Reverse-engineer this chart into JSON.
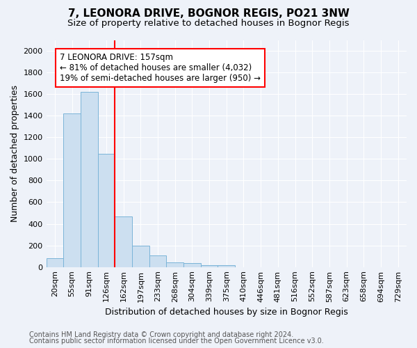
{
  "title": "7, LEONORA DRIVE, BOGNOR REGIS, PO21 3NW",
  "subtitle": "Size of property relative to detached houses in Bognor Regis",
  "xlabel": "Distribution of detached houses by size in Bognor Regis",
  "ylabel": "Number of detached properties",
  "categories": [
    "20sqm",
    "55sqm",
    "91sqm",
    "126sqm",
    "162sqm",
    "197sqm",
    "233sqm",
    "268sqm",
    "304sqm",
    "339sqm",
    "375sqm",
    "410sqm",
    "446sqm",
    "481sqm",
    "516sqm",
    "552sqm",
    "587sqm",
    "623sqm",
    "658sqm",
    "694sqm",
    "729sqm"
  ],
  "values": [
    80,
    1420,
    1620,
    1050,
    470,
    200,
    105,
    45,
    35,
    15,
    20,
    0,
    0,
    0,
    0,
    0,
    0,
    0,
    0,
    0,
    0
  ],
  "bar_color": "#ccdff0",
  "bar_edge_color": "#7ab4d8",
  "red_line_x": 3.5,
  "annotation_text": "7 LEONORA DRIVE: 157sqm\n← 81% of detached houses are smaller (4,032)\n19% of semi-detached houses are larger (950) →",
  "annotation_box_color": "white",
  "annotation_border_color": "red",
  "ylim": [
    0,
    2100
  ],
  "yticks": [
    0,
    200,
    400,
    600,
    800,
    1000,
    1200,
    1400,
    1600,
    1800,
    2000
  ],
  "footnote1": "Contains HM Land Registry data © Crown copyright and database right 2024.",
  "footnote2": "Contains public sector information licensed under the Open Government Licence v3.0.",
  "bg_color": "#eef2f9",
  "plot_bg_color": "#eef2f9",
  "title_fontsize": 11,
  "subtitle_fontsize": 9.5,
  "tick_fontsize": 8,
  "ylabel_fontsize": 9,
  "xlabel_fontsize": 9,
  "footnote_fontsize": 7,
  "annotation_fontsize": 8.5
}
